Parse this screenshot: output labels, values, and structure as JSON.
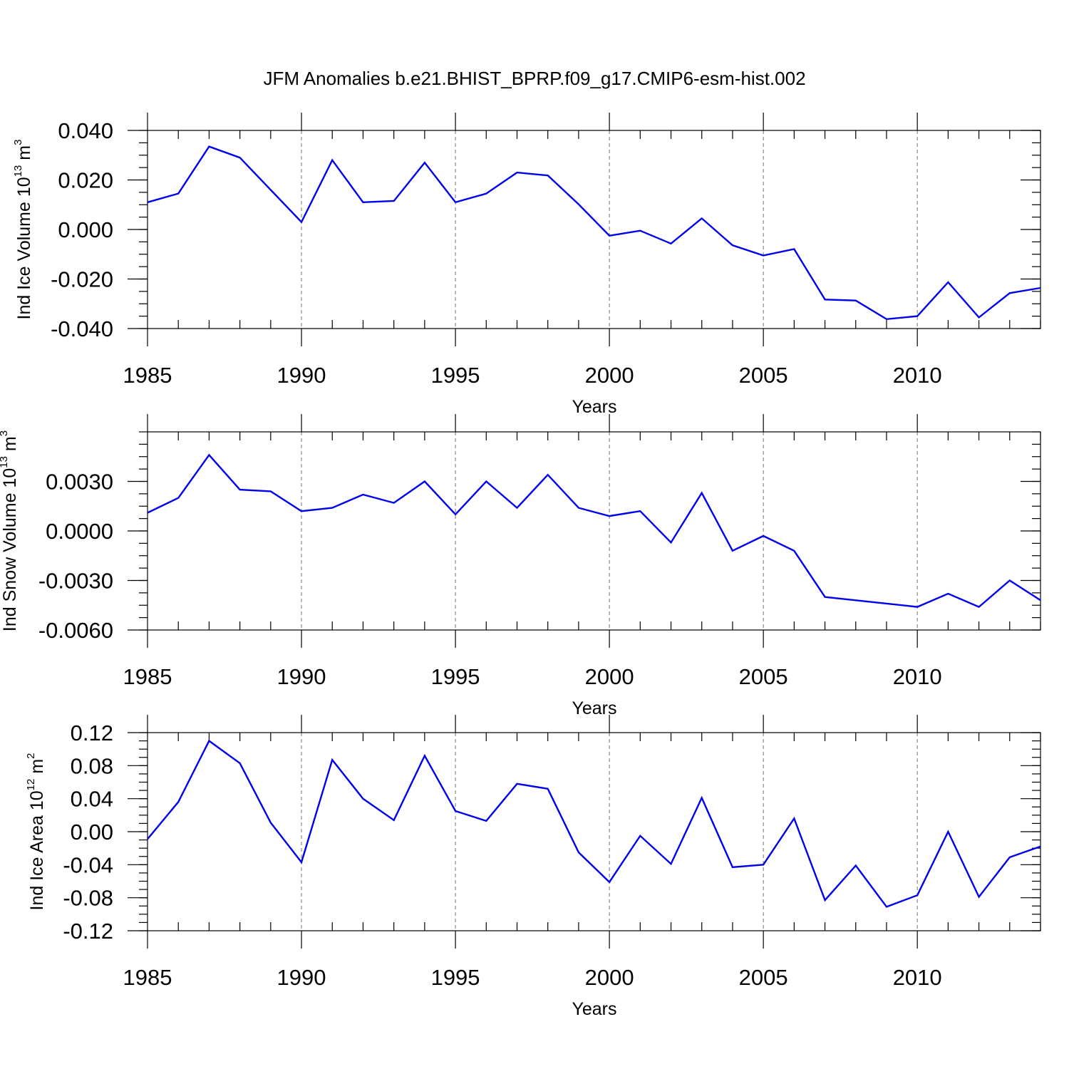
{
  "title": "JFM Anomalies b.e21.BHIST_BPRP.f09_g17.CMIP6-esm-hist.002",
  "chart_data": [
    {
      "type": "line",
      "ylabel": "Ind Ice Volume 10",
      "ylabel_exp": "13",
      "ylabel_unit": " m",
      "ylabel_unit_exp": "3",
      "xlabel": "Years",
      "xlim": [
        1985,
        2014
      ],
      "ylim": [
        -0.04,
        0.04
      ],
      "xticks": [
        1985,
        1990,
        1995,
        2000,
        2005,
        2010
      ],
      "yticks": [
        "0.040",
        "0.020",
        "0.000",
        "-0.020",
        "-0.040"
      ],
      "yticks_values": [
        0.04,
        0.02,
        0.0,
        -0.02,
        -0.04
      ],
      "color": "#0000ee",
      "x": [
        1985,
        1986,
        1987,
        1988,
        1989,
        1990,
        1991,
        1992,
        1993,
        1994,
        1995,
        1996,
        1997,
        1998,
        1999,
        2000,
        2001,
        2002,
        2003,
        2004,
        2005,
        2006,
        2007,
        2008,
        2009,
        2010,
        2011,
        2012,
        2013,
        2014
      ],
      "values": [
        0.011,
        0.0145,
        0.0335,
        0.029,
        0.016,
        0.003,
        0.028,
        0.011,
        0.0115,
        0.027,
        0.011,
        0.0145,
        0.023,
        0.0218,
        0.0102,
        -0.0025,
        -0.0005,
        -0.0057,
        0.0045,
        -0.0064,
        -0.0105,
        -0.0079,
        -0.0283,
        -0.0287,
        -0.0362,
        -0.035,
        -0.0213,
        -0.0355,
        -0.0257,
        -0.0236
      ]
    },
    {
      "type": "line",
      "ylabel": "Ind Snow Volume 10",
      "ylabel_exp": "13",
      "ylabel_unit": " m",
      "ylabel_unit_exp": "3",
      "xlabel": "Years",
      "xlim": [
        1985,
        2014
      ],
      "ylim": [
        -0.006,
        0.006
      ],
      "xticks": [
        1985,
        1990,
        1995,
        2000,
        2005,
        2010
      ],
      "yticks": [
        "0.0030",
        "0.0000",
        "-0.0030",
        "-0.0060"
      ],
      "yticks_values": [
        0.003,
        0.0,
        -0.003,
        -0.006
      ],
      "color": "#0000ee",
      "x": [
        1985,
        1986,
        1987,
        1988,
        1989,
        1990,
        1991,
        1992,
        1993,
        1994,
        1995,
        1996,
        1997,
        1998,
        1999,
        2000,
        2001,
        2002,
        2003,
        2004,
        2005,
        2006,
        2007,
        2008,
        2009,
        2010,
        2011,
        2012,
        2013,
        2014
      ],
      "values": [
        0.0011,
        0.002,
        0.0046,
        0.0025,
        0.0024,
        0.0012,
        0.0014,
        0.0022,
        0.0017,
        0.003,
        0.001,
        0.003,
        0.0014,
        0.0034,
        0.0014,
        0.0009,
        0.0012,
        -0.0007,
        0.0023,
        -0.0012,
        -0.0003,
        -0.0012,
        -0.004,
        -0.0042,
        -0.0044,
        -0.0046,
        -0.0038,
        -0.0046,
        -0.003,
        -0.0042
      ]
    },
    {
      "type": "line",
      "ylabel": "Ind Ice Area 10",
      "ylabel_exp": "12",
      "ylabel_unit": " m",
      "ylabel_unit_exp": "2",
      "xlabel": "Years",
      "xlim": [
        1985,
        2014
      ],
      "ylim": [
        -0.12,
        0.12
      ],
      "xticks": [
        1985,
        1990,
        1995,
        2000,
        2005,
        2010
      ],
      "yticks": [
        "0.12",
        "0.08",
        "0.04",
        "0.00",
        "-0.04",
        "-0.08",
        "-0.12"
      ],
      "yticks_values": [
        0.12,
        0.08,
        0.04,
        0.0,
        -0.04,
        -0.08,
        -0.12
      ],
      "color": "#0000ee",
      "x": [
        1985,
        1986,
        1987,
        1988,
        1989,
        1990,
        1991,
        1992,
        1993,
        1994,
        1995,
        1996,
        1997,
        1998,
        1999,
        2000,
        2001,
        2002,
        2003,
        2004,
        2005,
        2006,
        2007,
        2008,
        2009,
        2010,
        2011,
        2012,
        2013,
        2014
      ],
      "values": [
        -0.009,
        0.036,
        0.11,
        0.083,
        0.011,
        -0.037,
        0.087,
        0.04,
        0.014,
        0.092,
        0.025,
        0.013,
        0.058,
        0.052,
        -0.025,
        -0.061,
        -0.005,
        -0.039,
        0.041,
        -0.043,
        -0.04,
        0.016,
        -0.083,
        -0.041,
        -0.091,
        -0.077,
        0.0,
        -0.079,
        -0.031,
        -0.018
      ]
    }
  ]
}
